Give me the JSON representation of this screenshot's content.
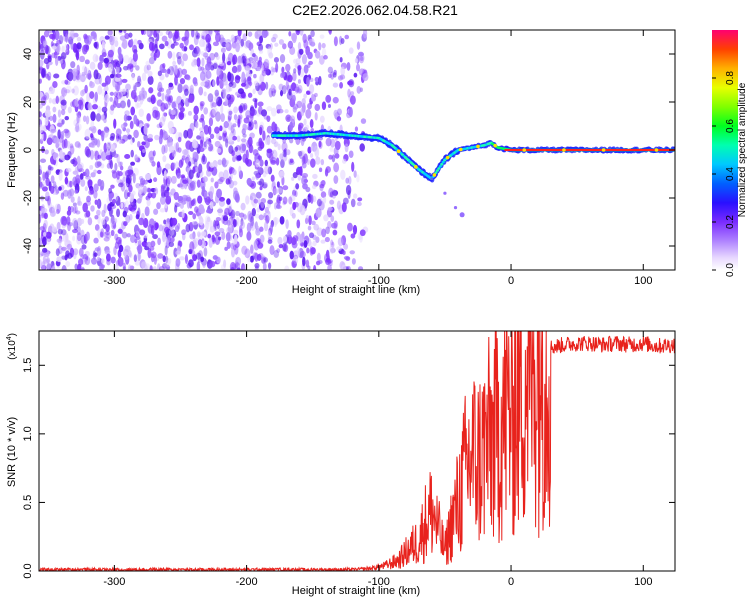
{
  "title": "C2E2.2026.062.04.58.R21",
  "colors": {
    "snr_line": "#e8221c",
    "axis": "#000000"
  },
  "chart_data": [
    {
      "type": "heatmap",
      "title": "C2E2.2026.062.04.58.R21",
      "xlabel": "Height of straight line (km)",
      "ylabel": "Frequency (Hz)",
      "xlim": [
        -357,
        124
      ],
      "ylim": [
        -50,
        50
      ],
      "xticks": [
        -300,
        -200,
        -100,
        0,
        100
      ],
      "xtick_labels": [
        "-300",
        "-200",
        "-100",
        "0",
        "100"
      ],
      "yticks": [
        -40,
        -20,
        0,
        20,
        40
      ],
      "ytick_labels": [
        "-40",
        "-20",
        "0",
        "20",
        "40"
      ],
      "colorbar": {
        "label": "Normalized spectral amplitude",
        "range": [
          0,
          1
        ],
        "ticks": [
          0.0,
          0.2,
          0.4,
          0.6,
          0.8
        ],
        "tick_labels": [
          "0.0",
          "0.2",
          "0.4",
          "0.6",
          "0.8"
        ]
      },
      "noise_region_x": [
        -357,
        -110
      ],
      "signal_trace": [
        {
          "x": -180,
          "y": 6
        },
        {
          "x": -160,
          "y": 6
        },
        {
          "x": -140,
          "y": 7
        },
        {
          "x": -120,
          "y": 6
        },
        {
          "x": -100,
          "y": 5
        },
        {
          "x": -90,
          "y": 2
        },
        {
          "x": -80,
          "y": -3
        },
        {
          "x": -70,
          "y": -8
        },
        {
          "x": -60,
          "y": -12
        },
        {
          "x": -55,
          "y": -8
        },
        {
          "x": -50,
          "y": -4
        },
        {
          "x": -45,
          "y": -2
        },
        {
          "x": -40,
          "y": 0
        },
        {
          "x": -30,
          "y": 1
        },
        {
          "x": -20,
          "y": 2
        },
        {
          "x": -15,
          "y": 3
        },
        {
          "x": -10,
          "y": 1
        },
        {
          "x": 0,
          "y": 0
        },
        {
          "x": 50,
          "y": 0
        },
        {
          "x": 100,
          "y": 0
        },
        {
          "x": 124,
          "y": 0
        }
      ],
      "branch_trace": [
        {
          "x": -60,
          "y": -12
        },
        {
          "x": -50,
          "y": -18
        },
        {
          "x": -42,
          "y": -24
        },
        {
          "x": -37,
          "y": -27
        }
      ]
    },
    {
      "type": "line",
      "xlabel": "Height of straight line (km)",
      "ylabel": "SNR (10 * v/v)",
      "y_multiplier_label": "(x10",
      "y_multiplier_exp": "4",
      "xlim": [
        -357,
        124
      ],
      "ylim": [
        0.0,
        1.75
      ],
      "xticks": [
        -300,
        -200,
        -100,
        0,
        100
      ],
      "xtick_labels": [
        "-300",
        "-200",
        "-100",
        "0",
        "100"
      ],
      "yticks": [
        0.0,
        0.5,
        1.0,
        1.5
      ],
      "ytick_labels": [
        "0.0",
        "0.5",
        "1.0",
        "1.5"
      ],
      "series": [
        {
          "name": "SNR",
          "x": [
            -357,
            -300,
            -250,
            -200,
            -150,
            -120,
            -105,
            -95,
            -85,
            -75,
            -70,
            -65,
            -60,
            -55,
            -50,
            -45,
            -40,
            -35,
            -30,
            -25,
            -20,
            -15,
            -10,
            -5,
            0,
            5,
            10,
            15,
            20,
            25,
            30,
            40,
            50,
            60,
            70,
            80,
            90,
            100,
            110,
            124
          ],
          "values": [
            0.01,
            0.01,
            0.01,
            0.01,
            0.01,
            0.01,
            0.02,
            0.04,
            0.08,
            0.18,
            0.22,
            0.35,
            0.45,
            0.3,
            0.15,
            0.35,
            0.5,
            0.7,
            0.85,
            0.8,
            0.9,
            0.95,
            1.05,
            1.15,
            1.2,
            1.35,
            1.45,
            1.55,
            1.6,
            1.62,
            1.63,
            1.65,
            1.66,
            1.66,
            1.65,
            1.66,
            1.65,
            1.66,
            1.64,
            1.65
          ]
        }
      ]
    }
  ]
}
